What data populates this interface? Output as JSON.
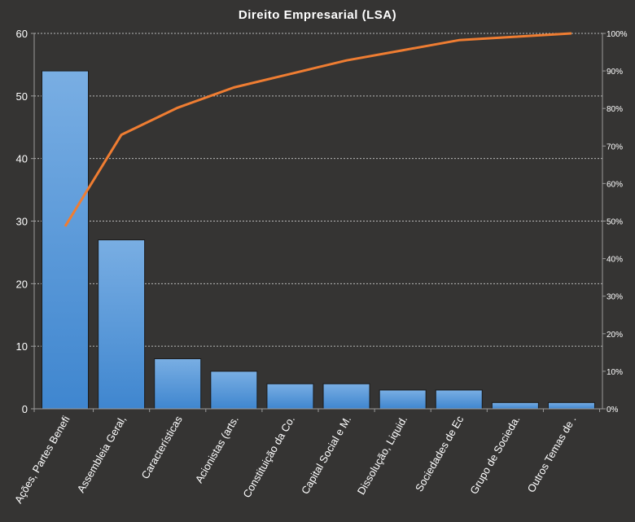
{
  "chart_data": {
    "type": "bar",
    "title": "Direito  Empresarial  (LSA)",
    "categories": [
      "Ações, Partes Benefi",
      "Assembleia Geral,",
      "Características",
      "Acionistas (arts.",
      "Constituição da Co.",
      "Capital Social e M.",
      "Dissolução, Liquid.",
      "Sociedades de Ec",
      "Grupo de Socieda.",
      "Outros Temas de ."
    ],
    "series": [
      {
        "values": [
          54,
          27,
          8,
          6,
          4,
          4,
          3,
          3,
          1,
          1
        ]
      },
      {
        "values": [
          48.6,
          73.0,
          80.2,
          85.6,
          89.2,
          92.8,
          95.5,
          98.2,
          99.1,
          100
        ]
      }
    ],
    "ylim": [
      0,
      60
    ],
    "y_ticks": [
      "0",
      "10",
      "20",
      "30",
      "40",
      "50",
      "60"
    ],
    "y2lim": [
      0,
      100
    ],
    "y2_ticks": [
      "0%",
      "10%",
      "20%",
      "30%",
      "40%",
      "50%",
      "60%",
      "70%",
      "80%",
      "90%",
      "100%"
    ],
    "grid": true,
    "colors": {
      "background": "#353433",
      "bar_top": "#79aee3",
      "bar_bottom": "#3f86cf",
      "line": "#ef7d32"
    }
  }
}
